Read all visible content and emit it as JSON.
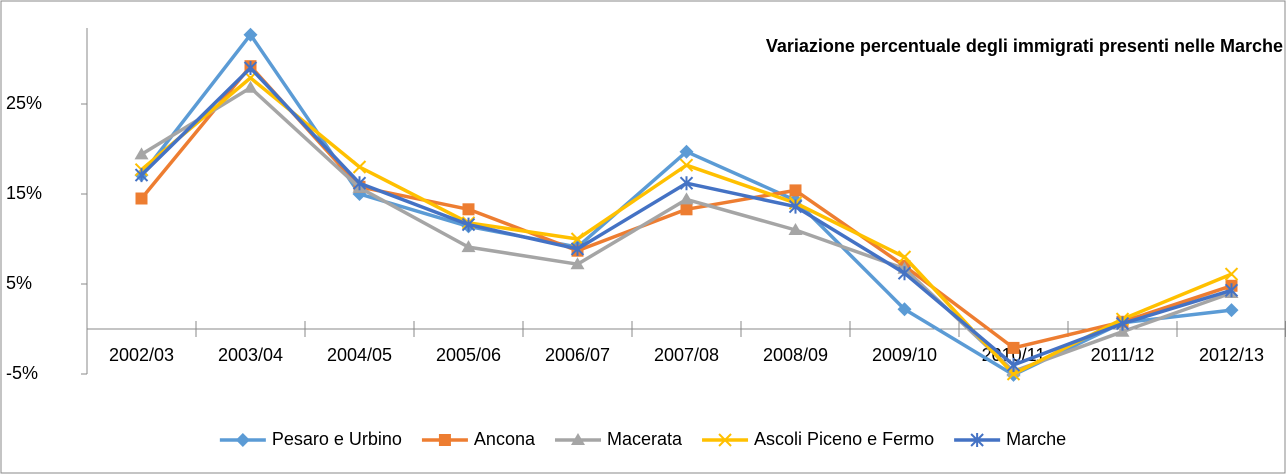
{
  "chart_data": {
    "type": "line",
    "title": "Variazione percentuale degli immigrati presenti nelle Marche",
    "categories": [
      "2002/03",
      "2003/04",
      "2004/05",
      "2005/06",
      "2006/07",
      "2007/08",
      "2008/09",
      "2009/10",
      "2010/11",
      "2011/12",
      "2012/13"
    ],
    "series": [
      {
        "name": "Pesaro e Urbino",
        "color": "#5b9bd5",
        "marker": "diamond",
        "values": [
          17.1,
          32.7,
          15.0,
          11.4,
          9.1,
          19.7,
          14.3,
          2.2,
          -5.1,
          0.7,
          2.1
        ]
      },
      {
        "name": "Ancona",
        "color": "#ed7d31",
        "marker": "square",
        "values": [
          14.5,
          29.2,
          15.8,
          13.3,
          8.7,
          13.3,
          15.4,
          7.0,
          -2.1,
          0.8,
          4.8
        ]
      },
      {
        "name": "Macerata",
        "color": "#a5a5a5",
        "marker": "triangle",
        "values": [
          19.4,
          26.8,
          15.7,
          9.1,
          7.2,
          14.4,
          11.0,
          6.7,
          -4.7,
          -0.3,
          4.0
        ]
      },
      {
        "name": "Ascoli Piceno e Fermo",
        "color": "#ffc000",
        "marker": "x",
        "values": [
          17.7,
          27.9,
          18.0,
          11.8,
          10.0,
          18.2,
          14.0,
          8.0,
          -5.0,
          1.1,
          6.1
        ]
      },
      {
        "name": "Marche",
        "color": "#4472c4",
        "marker": "star",
        "values": [
          17.1,
          29.0,
          16.2,
          11.6,
          8.9,
          16.2,
          13.6,
          6.2,
          -4.0,
          0.6,
          4.3
        ]
      }
    ],
    "ylim": [
      -5,
      35
    ],
    "yticks": [
      {
        "value": -5,
        "label": "-5%"
      },
      {
        "value": 5,
        "label": "5%"
      },
      {
        "value": 15,
        "label": "15%"
      },
      {
        "value": 25,
        "label": "25%"
      }
    ],
    "grid": false,
    "legend": "bottom"
  }
}
